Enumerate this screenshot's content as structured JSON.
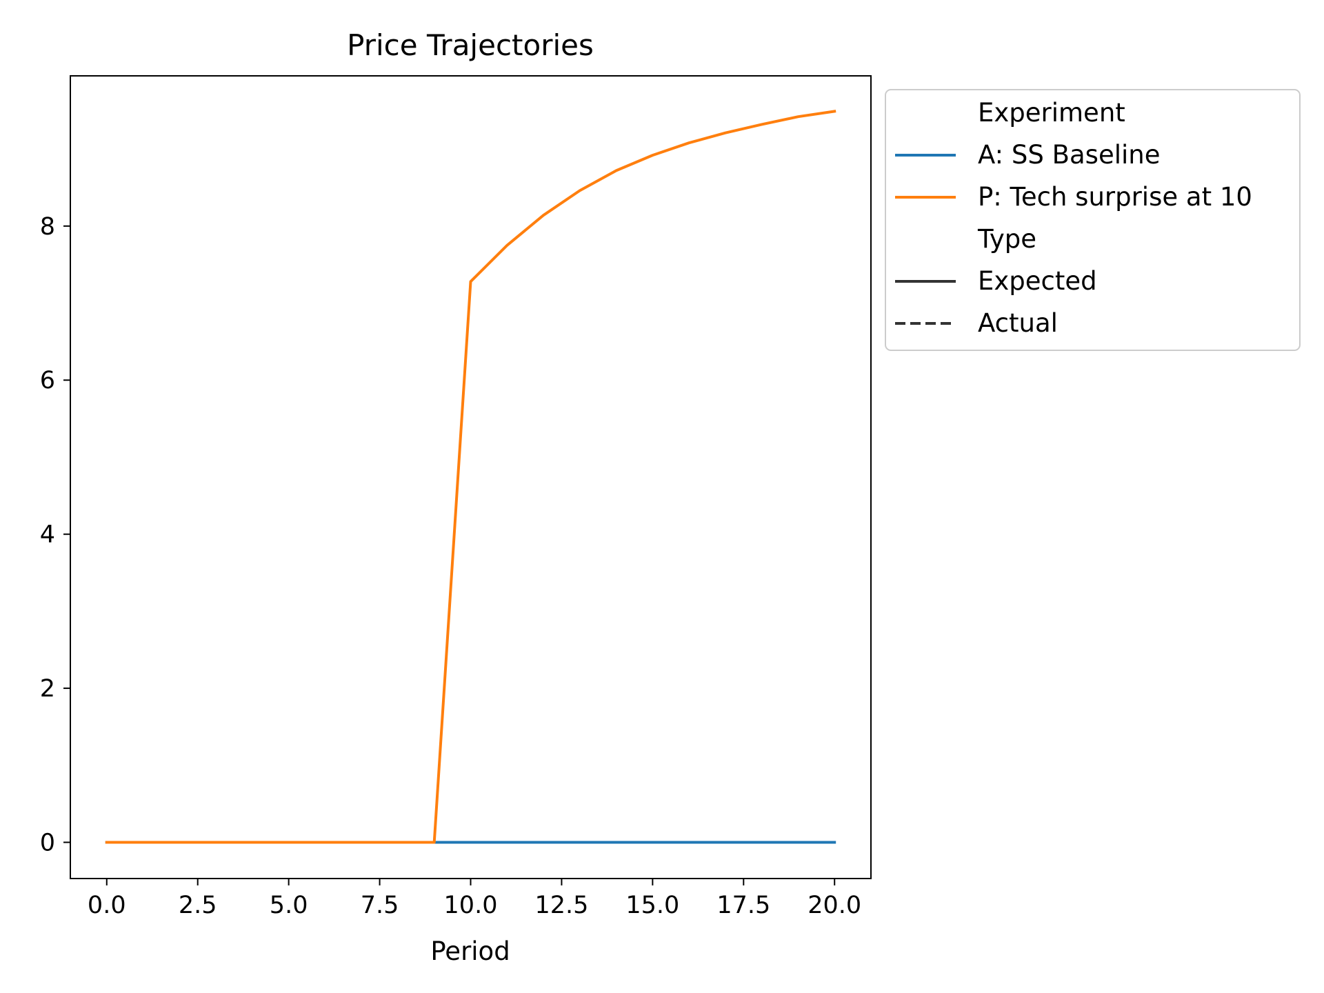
{
  "chart_data": {
    "type": "line",
    "title": "Price Trajectories",
    "xlabel": "Period",
    "ylabel": "",
    "xlim": [
      -1.0,
      21.0
    ],
    "ylim": [
      -0.47,
      9.95
    ],
    "xticks": [
      0.0,
      2.5,
      5.0,
      7.5,
      10.0,
      12.5,
      15.0,
      17.5,
      20.0
    ],
    "xtick_labels": [
      "0.0",
      "2.5",
      "5.0",
      "7.5",
      "10.0",
      "12.5",
      "15.0",
      "17.5",
      "20.0"
    ],
    "yticks": [
      0,
      2,
      4,
      6,
      8
    ],
    "ytick_labels": [
      "0",
      "2",
      "4",
      "6",
      "8"
    ],
    "grid": false,
    "legend_position": "outside-right-top",
    "x": [
      0,
      1,
      2,
      3,
      4,
      5,
      6,
      7,
      8,
      9,
      10,
      11,
      12,
      13,
      14,
      15,
      16,
      17,
      18,
      19,
      20
    ],
    "series": [
      {
        "name": "A: SS Baseline",
        "color": "#1f77b4",
        "linestyle": "solid",
        "values": [
          0,
          0,
          0,
          0,
          0,
          0,
          0,
          0,
          0,
          0,
          0,
          0,
          0,
          0,
          0,
          0,
          0,
          0,
          0,
          0,
          0
        ]
      },
      {
        "name": "P: Tech surprise at 10",
        "color": "#ff7f0e",
        "linestyle": "solid",
        "values": [
          0,
          0,
          0,
          0,
          0,
          0,
          0,
          0,
          0,
          0,
          7.28,
          7.75,
          8.14,
          8.46,
          8.72,
          8.92,
          9.08,
          9.21,
          9.32,
          9.42,
          9.49
        ]
      }
    ],
    "legend": {
      "groups": [
        {
          "title": "Experiment",
          "entries": [
            {
              "label": "A: SS Baseline",
              "color": "#1f77b4",
              "linestyle": "solid"
            },
            {
              "label": "P: Tech surprise at 10",
              "color": "#ff7f0e",
              "linestyle": "solid"
            }
          ]
        },
        {
          "title": "Type",
          "entries": [
            {
              "label": "Expected",
              "color": "#333333",
              "linestyle": "solid"
            },
            {
              "label": "Actual",
              "color": "#333333",
              "linestyle": "dashed"
            }
          ]
        }
      ]
    }
  }
}
